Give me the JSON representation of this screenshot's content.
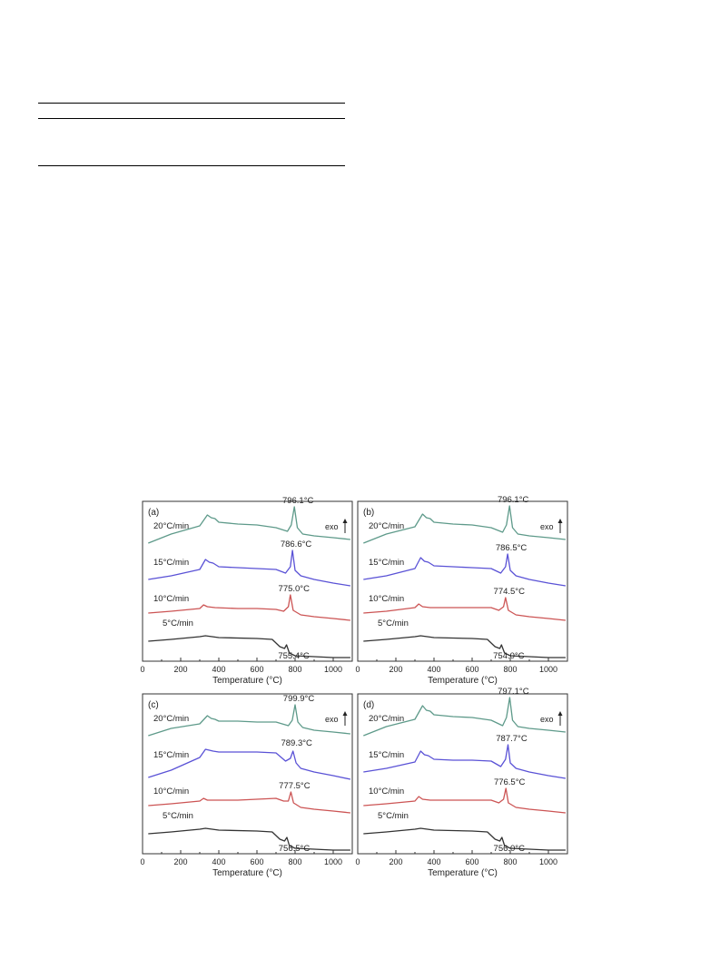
{
  "chart_data": [
    {
      "type": "line",
      "panel_label": "(a)",
      "xlabel": "Temperature (°C)",
      "xlim": [
        0,
        1100
      ],
      "xticks": [
        0,
        200,
        400,
        600,
        800,
        1000
      ],
      "y_direction_label": "exo",
      "series": [
        {
          "name": "20°C/min",
          "color": "#5e9a8a",
          "peak_label": "796.1°C",
          "peak_x": 796,
          "x": [
            30,
            150,
            300,
            340,
            360,
            380,
            400,
            500,
            600,
            700,
            760,
            780,
            796,
            812,
            840,
            900,
            1000,
            1090
          ],
          "y": [
            -0.3,
            0.2,
            0.65,
            1.25,
            1.1,
            1.05,
            0.85,
            0.75,
            0.7,
            0.55,
            0.35,
            0.7,
            1.7,
            0.55,
            0.2,
            0.1,
            0.0,
            -0.1
          ]
        },
        {
          "name": "15°C/min",
          "color": "#5a52d6",
          "peak_label": "786.6°C",
          "peak_x": 786,
          "x": [
            30,
            150,
            300,
            330,
            350,
            370,
            400,
            500,
            600,
            700,
            750,
            775,
            786,
            800,
            830,
            900,
            1000,
            1090
          ],
          "y": [
            -0.3,
            -0.1,
            0.25,
            0.8,
            0.65,
            0.6,
            0.4,
            0.35,
            0.3,
            0.25,
            0.05,
            0.4,
            1.3,
            0.2,
            -0.1,
            -0.3,
            -0.5,
            -0.65
          ]
        },
        {
          "name": "10°C/min",
          "color": "#cc5454",
          "peak_label": "775.0°C",
          "peak_x": 775,
          "x": [
            30,
            150,
            300,
            320,
            340,
            380,
            500,
            600,
            700,
            740,
            765,
            775,
            790,
            830,
            900,
            1000,
            1090
          ],
          "y": [
            -0.15,
            -0.05,
            0.1,
            0.3,
            0.2,
            0.15,
            0.1,
            0.1,
            0.05,
            -0.05,
            0.2,
            0.85,
            0.0,
            -0.25,
            -0.35,
            -0.45,
            -0.55
          ]
        },
        {
          "name": "5°C/min",
          "color": "#333333",
          "peak_label": "755.4°C",
          "peak_x": 755,
          "x": [
            30,
            150,
            300,
            330,
            400,
            600,
            680,
            720,
            745,
            755,
            770,
            800,
            900,
            1000,
            1090
          ],
          "y": [
            -0.2,
            -0.1,
            0.05,
            0.1,
            0.0,
            -0.05,
            -0.1,
            -0.5,
            -0.6,
            -0.4,
            -0.85,
            -1.0,
            -1.05,
            -1.1,
            -1.1
          ]
        }
      ]
    },
    {
      "type": "line",
      "panel_label": "(b)",
      "xlabel": "Temperature (°C)",
      "xlim": [
        0,
        1100
      ],
      "xticks": [
        0,
        200,
        400,
        600,
        800,
        1000
      ],
      "y_direction_label": "exo",
      "series": [
        {
          "name": "20°C/min",
          "color": "#5e9a8a",
          "peak_label": "796.1°C",
          "peak_x": 796,
          "x": [
            30,
            150,
            300,
            340,
            360,
            380,
            400,
            500,
            600,
            700,
            760,
            780,
            796,
            812,
            840,
            900,
            1000,
            1090
          ],
          "y": [
            -0.3,
            0.2,
            0.6,
            1.3,
            1.1,
            1.05,
            0.85,
            0.75,
            0.7,
            0.55,
            0.3,
            0.7,
            1.75,
            0.55,
            0.2,
            0.1,
            0.0,
            -0.1
          ]
        },
        {
          "name": "15°C/min",
          "color": "#5a52d6",
          "peak_label": "786.5°C",
          "peak_x": 786,
          "x": [
            30,
            150,
            300,
            330,
            350,
            370,
            400,
            500,
            600,
            700,
            750,
            775,
            786,
            800,
            830,
            900,
            1000,
            1090
          ],
          "y": [
            -0.3,
            -0.1,
            0.3,
            0.9,
            0.7,
            0.65,
            0.45,
            0.4,
            0.35,
            0.3,
            0.05,
            0.4,
            1.1,
            0.2,
            -0.1,
            -0.3,
            -0.5,
            -0.65
          ]
        },
        {
          "name": "10°C/min",
          "color": "#cc5454",
          "peak_label": "774.5°C",
          "peak_x": 775,
          "x": [
            30,
            150,
            300,
            320,
            340,
            380,
            500,
            600,
            700,
            740,
            765,
            775,
            790,
            830,
            900,
            1000,
            1090
          ],
          "y": [
            -0.15,
            -0.05,
            0.15,
            0.35,
            0.2,
            0.15,
            0.15,
            0.15,
            0.15,
            0.0,
            0.2,
            0.7,
            0.0,
            -0.25,
            -0.35,
            -0.45,
            -0.55
          ]
        },
        {
          "name": "5°C/min",
          "color": "#333333",
          "peak_label": "754.0°C",
          "peak_x": 754,
          "x": [
            30,
            150,
            300,
            330,
            400,
            600,
            680,
            720,
            745,
            754,
            770,
            800,
            900,
            1000,
            1090
          ],
          "y": [
            -0.2,
            -0.1,
            0.05,
            0.1,
            0.0,
            -0.05,
            -0.1,
            -0.5,
            -0.6,
            -0.4,
            -0.85,
            -1.0,
            -1.05,
            -1.1,
            -1.1
          ]
        }
      ]
    },
    {
      "type": "line",
      "panel_label": "(c)",
      "xlabel": "Temperature (°C)",
      "xlim": [
        0,
        1100
      ],
      "xticks": [
        0,
        200,
        400,
        600,
        800,
        1000
      ],
      "y_direction_label": "exo",
      "series": [
        {
          "name": "20°C/min",
          "color": "#5e9a8a",
          "peak_label": "799.9°C",
          "peak_x": 800,
          "x": [
            30,
            150,
            300,
            340,
            360,
            380,
            400,
            500,
            600,
            700,
            765,
            785,
            800,
            815,
            840,
            900,
            1000,
            1090
          ],
          "y": [
            -0.3,
            0.1,
            0.35,
            0.8,
            0.65,
            0.6,
            0.5,
            0.5,
            0.45,
            0.45,
            0.25,
            0.55,
            1.4,
            0.45,
            0.15,
            0.0,
            -0.1,
            -0.2
          ]
        },
        {
          "name": "15°C/min",
          "color": "#5a52d6",
          "peak_label": "789.3°C",
          "peak_x": 789,
          "x": [
            30,
            150,
            300,
            330,
            350,
            370,
            400,
            500,
            600,
            700,
            750,
            775,
            789,
            805,
            830,
            900,
            1000,
            1090
          ],
          "y": [
            -0.6,
            -0.2,
            0.5,
            0.95,
            0.9,
            0.85,
            0.8,
            0.8,
            0.8,
            0.75,
            0.3,
            0.45,
            0.85,
            0.2,
            -0.1,
            -0.3,
            -0.5,
            -0.7
          ]
        },
        {
          "name": "10°C/min",
          "color": "#cc5454",
          "peak_label": "777.5°C",
          "peak_x": 778,
          "x": [
            30,
            150,
            300,
            320,
            340,
            380,
            500,
            600,
            700,
            740,
            765,
            778,
            792,
            830,
            900,
            1000,
            1090
          ],
          "y": [
            -0.15,
            -0.05,
            0.1,
            0.25,
            0.15,
            0.15,
            0.15,
            0.2,
            0.25,
            0.1,
            0.1,
            0.6,
            0.0,
            -0.25,
            -0.35,
            -0.45,
            -0.55
          ]
        },
        {
          "name": "5°C/min",
          "color": "#333333",
          "peak_label": "756.5°C",
          "peak_x": 757,
          "x": [
            30,
            150,
            300,
            330,
            400,
            600,
            680,
            720,
            745,
            757,
            770,
            800,
            900,
            1000,
            1090
          ],
          "y": [
            -0.2,
            -0.1,
            0.05,
            0.1,
            0.0,
            -0.05,
            -0.1,
            -0.5,
            -0.6,
            -0.4,
            -0.85,
            -1.0,
            -1.05,
            -1.1,
            -1.1
          ]
        }
      ]
    },
    {
      "type": "line",
      "panel_label": "(d)",
      "xlabel": "Temperature (°C)",
      "xlim": [
        0,
        1100
      ],
      "xticks": [
        0,
        200,
        400,
        600,
        800,
        1000
      ],
      "y_direction_label": "exo",
      "series": [
        {
          "name": "20°C/min",
          "color": "#5e9a8a",
          "peak_label": "797.1°C",
          "peak_x": 797,
          "x": [
            30,
            150,
            300,
            340,
            360,
            380,
            400,
            500,
            600,
            700,
            760,
            780,
            797,
            812,
            840,
            900,
            1000,
            1090
          ],
          "y": [
            -0.3,
            0.2,
            0.6,
            1.35,
            1.1,
            1.05,
            0.85,
            0.75,
            0.7,
            0.55,
            0.25,
            0.7,
            1.8,
            0.55,
            0.2,
            0.1,
            0.0,
            -0.1
          ]
        },
        {
          "name": "15°C/min",
          "color": "#5a52d6",
          "peak_label": "787.7°C",
          "peak_x": 788,
          "x": [
            30,
            150,
            300,
            330,
            350,
            370,
            400,
            500,
            600,
            700,
            750,
            775,
            788,
            800,
            830,
            900,
            1000,
            1090
          ],
          "y": [
            -0.3,
            -0.1,
            0.25,
            0.85,
            0.65,
            0.6,
            0.4,
            0.35,
            0.35,
            0.3,
            0.0,
            0.4,
            1.2,
            0.2,
            -0.1,
            -0.3,
            -0.5,
            -0.65
          ]
        },
        {
          "name": "10°C/min",
          "color": "#cc5454",
          "peak_label": "776.5°C",
          "peak_x": 777,
          "x": [
            30,
            150,
            300,
            320,
            340,
            380,
            500,
            600,
            700,
            740,
            765,
            777,
            790,
            830,
            900,
            1000,
            1090
          ],
          "y": [
            -0.15,
            -0.05,
            0.1,
            0.35,
            0.2,
            0.15,
            0.15,
            0.15,
            0.15,
            0.0,
            0.2,
            0.8,
            0.0,
            -0.25,
            -0.35,
            -0.45,
            -0.55
          ]
        },
        {
          "name": "5°C/min",
          "color": "#333333",
          "peak_label": "756.0°C",
          "peak_x": 756,
          "x": [
            30,
            150,
            300,
            330,
            400,
            600,
            680,
            720,
            745,
            756,
            770,
            800,
            900,
            1000,
            1090
          ],
          "y": [
            -0.2,
            -0.1,
            0.05,
            0.1,
            0.0,
            -0.05,
            -0.1,
            -0.5,
            -0.6,
            -0.4,
            -0.85,
            -1.0,
            -1.05,
            -1.1,
            -1.1
          ]
        }
      ]
    }
  ]
}
